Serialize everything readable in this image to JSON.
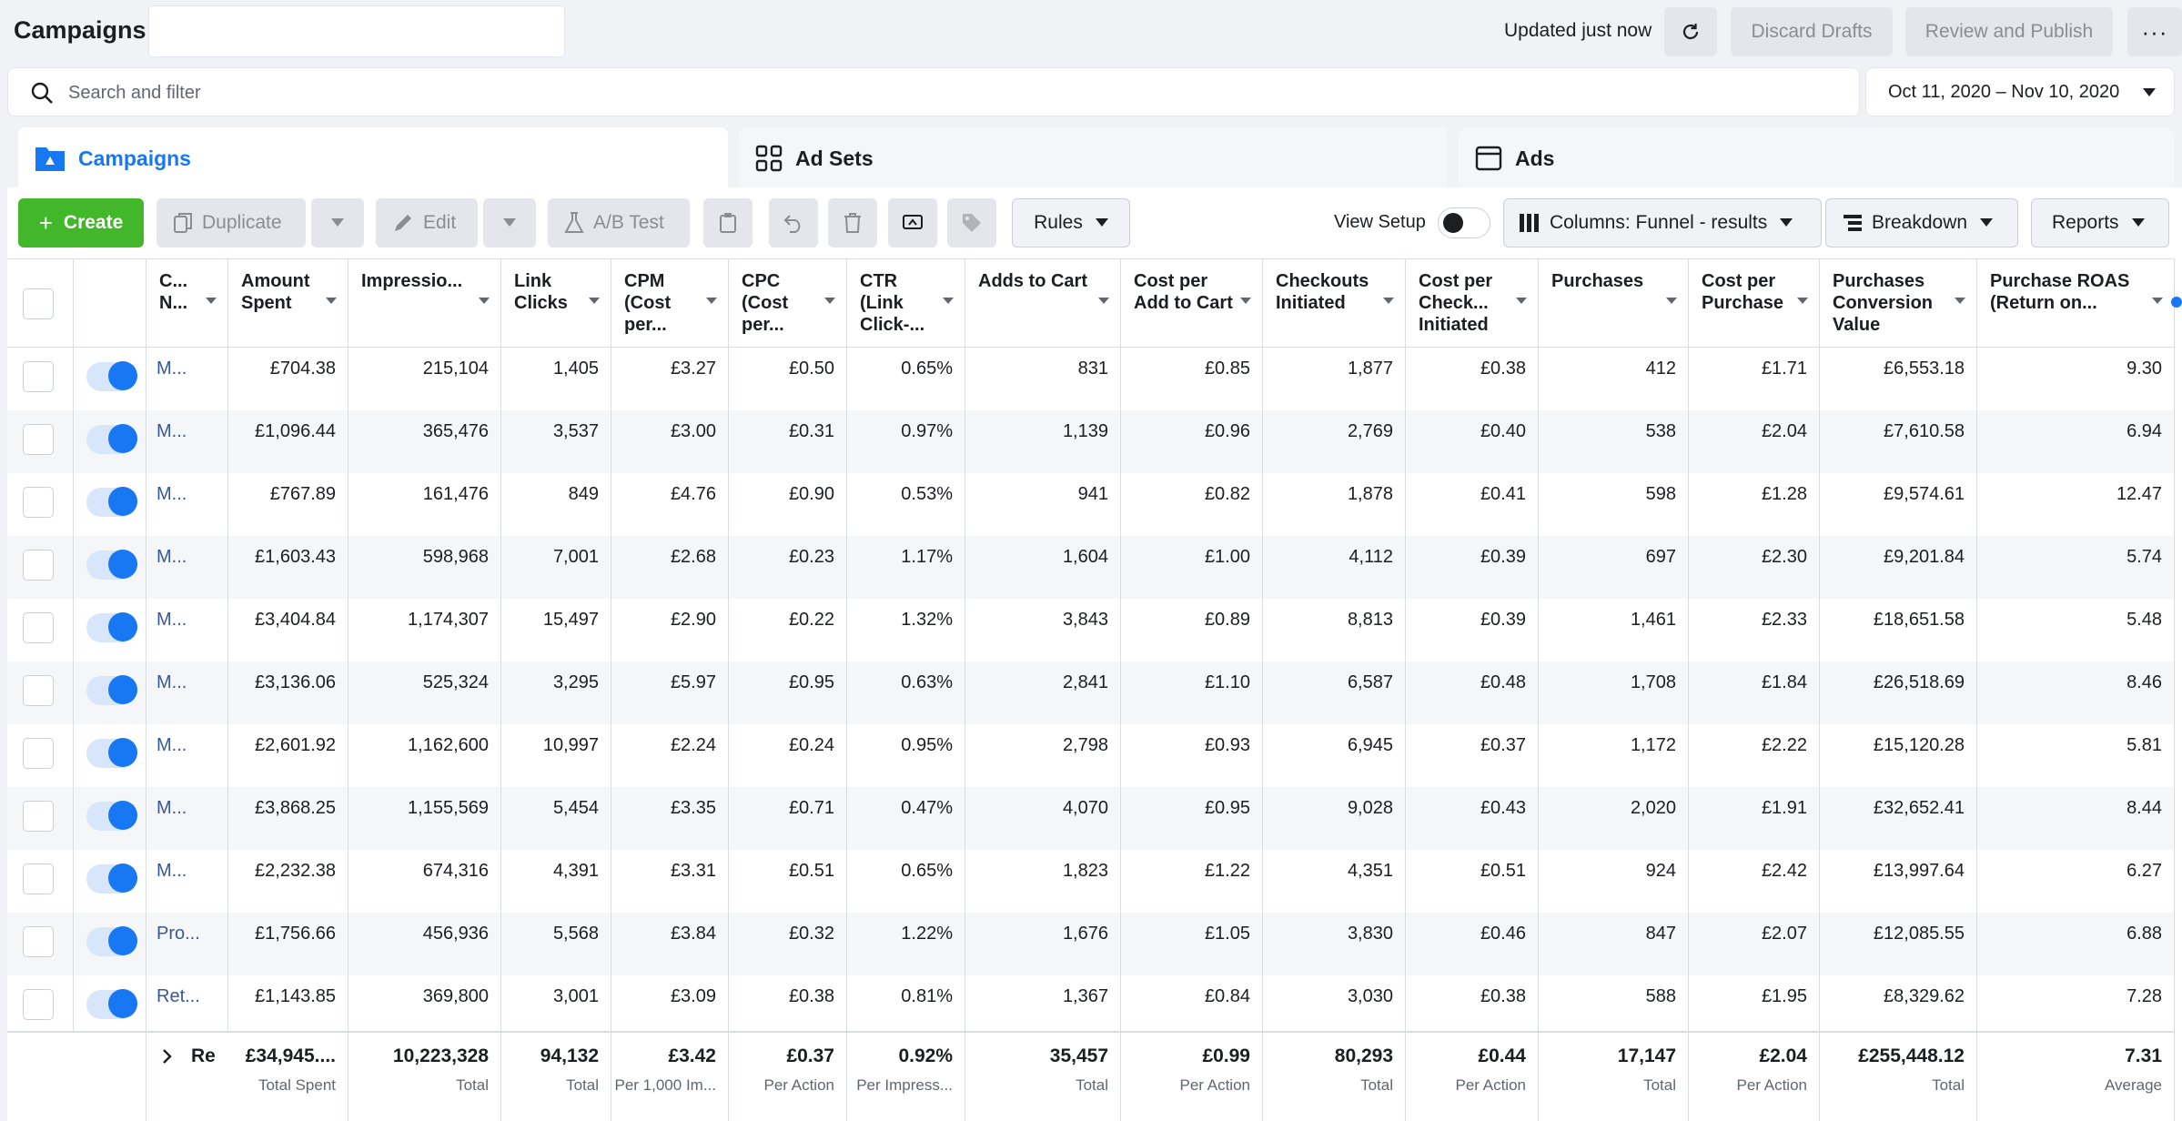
{
  "header": {
    "title": "Campaigns",
    "updated": "Updated just now",
    "discard": "Discard Drafts",
    "review": "Review and Publish",
    "more": "···"
  },
  "search": {
    "placeholder": "Search and filter",
    "value": ""
  },
  "date_range": "Oct 11, 2020 – Nov 10, 2020",
  "tabs": [
    {
      "label": "Campaigns",
      "icon": "folder-icon",
      "active": true
    },
    {
      "label": "Ad Sets",
      "icon": "grid-icon",
      "active": false
    },
    {
      "label": "Ads",
      "icon": "ad-window-icon",
      "active": false
    }
  ],
  "toolbar": {
    "create": "Create",
    "duplicate": "Duplicate",
    "edit": "Edit",
    "ab_test": "A/B Test",
    "rules": "Rules",
    "view_setup": "View Setup",
    "columns": "Columns: Funnel - results",
    "breakdown": "Breakdown",
    "reports": "Reports"
  },
  "columns": [
    "C... N...",
    "Amount Spent",
    "Impressio...",
    "Link Clicks",
    "CPM (Cost per...",
    "CPC (Cost per...",
    "CTR (Link Click-...",
    "Adds to Cart",
    "Cost per Add to Cart",
    "Checkouts Initiated",
    "Cost per Check... Initiated",
    "Purchases",
    "Cost per Purchase",
    "Purchases Conversion Value",
    "Purchase ROAS (Return on..."
  ],
  "rows": [
    {
      "name": "M...",
      "cells": [
        "£704.38",
        "215,104",
        "1,405",
        "£3.27",
        "£0.50",
        "0.65%",
        "831",
        "£0.85",
        "1,877",
        "£0.38",
        "412",
        "£1.71",
        "£6,553.18",
        "9.30"
      ]
    },
    {
      "name": "M...",
      "cells": [
        "£1,096.44",
        "365,476",
        "3,537",
        "£3.00",
        "£0.31",
        "0.97%",
        "1,139",
        "£0.96",
        "2,769",
        "£0.40",
        "538",
        "£2.04",
        "£7,610.58",
        "6.94"
      ]
    },
    {
      "name": "M...",
      "cells": [
        "£767.89",
        "161,476",
        "849",
        "£4.76",
        "£0.90",
        "0.53%",
        "941",
        "£0.82",
        "1,878",
        "£0.41",
        "598",
        "£1.28",
        "£9,574.61",
        "12.47"
      ]
    },
    {
      "name": "M...",
      "cells": [
        "£1,603.43",
        "598,968",
        "7,001",
        "£2.68",
        "£0.23",
        "1.17%",
        "1,604",
        "£1.00",
        "4,112",
        "£0.39",
        "697",
        "£2.30",
        "£9,201.84",
        "5.74"
      ]
    },
    {
      "name": "M...",
      "cells": [
        "£3,404.84",
        "1,174,307",
        "15,497",
        "£2.90",
        "£0.22",
        "1.32%",
        "3,843",
        "£0.89",
        "8,813",
        "£0.39",
        "1,461",
        "£2.33",
        "£18,651.58",
        "5.48"
      ]
    },
    {
      "name": "M...",
      "cells": [
        "£3,136.06",
        "525,324",
        "3,295",
        "£5.97",
        "£0.95",
        "0.63%",
        "2,841",
        "£1.10",
        "6,587",
        "£0.48",
        "1,708",
        "£1.84",
        "£26,518.69",
        "8.46"
      ]
    },
    {
      "name": "M...",
      "cells": [
        "£2,601.92",
        "1,162,600",
        "10,997",
        "£2.24",
        "£0.24",
        "0.95%",
        "2,798",
        "£0.93",
        "6,945",
        "£0.37",
        "1,172",
        "£2.22",
        "£15,120.28",
        "5.81"
      ]
    },
    {
      "name": "M...",
      "cells": [
        "£3,868.25",
        "1,155,569",
        "5,454",
        "£3.35",
        "£0.71",
        "0.47%",
        "4,070",
        "£0.95",
        "9,028",
        "£0.43",
        "2,020",
        "£1.91",
        "£32,652.41",
        "8.44"
      ]
    },
    {
      "name": "M...",
      "cells": [
        "£2,232.38",
        "674,316",
        "4,391",
        "£3.31",
        "£0.51",
        "0.65%",
        "1,823",
        "£1.22",
        "4,351",
        "£0.51",
        "924",
        "£2.42",
        "£13,997.64",
        "6.27"
      ]
    },
    {
      "name": "Pro...",
      "cells": [
        "£1,756.66",
        "456,936",
        "5,568",
        "£3.84",
        "£0.32",
        "1.22%",
        "1,676",
        "£1.05",
        "3,830",
        "£0.46",
        "847",
        "£2.07",
        "£12,085.55",
        "6.88"
      ]
    },
    {
      "name": "Ret...",
      "cells": [
        "£1,143.85",
        "369,800",
        "3,001",
        "£3.09",
        "£0.38",
        "0.81%",
        "1,367",
        "£0.84",
        "3,030",
        "£0.38",
        "588",
        "£1.95",
        "£8,329.62",
        "7.28"
      ]
    }
  ],
  "totals": {
    "label": "Re",
    "cells": [
      {
        "value": "£34,945....",
        "label": "Total Spent"
      },
      {
        "value": "10,223,328",
        "label": "Total"
      },
      {
        "value": "94,132",
        "label": "Total"
      },
      {
        "value": "£3.42",
        "label": "Per 1,000 Im..."
      },
      {
        "value": "£0.37",
        "label": "Per Action"
      },
      {
        "value": "0.92%",
        "label": "Per Impress..."
      },
      {
        "value": "35,457",
        "label": "Total"
      },
      {
        "value": "£0.99",
        "label": "Per Action"
      },
      {
        "value": "80,293",
        "label": "Total"
      },
      {
        "value": "£0.44",
        "label": "Per Action"
      },
      {
        "value": "17,147",
        "label": "Total"
      },
      {
        "value": "£2.04",
        "label": "Per Action"
      },
      {
        "value": "£255,448.12",
        "label": "Total"
      },
      {
        "value": "7.31",
        "label": "Average"
      }
    ]
  },
  "colors": {
    "accent": "#1877f2",
    "create": "#42b72a",
    "link": "#385898"
  }
}
